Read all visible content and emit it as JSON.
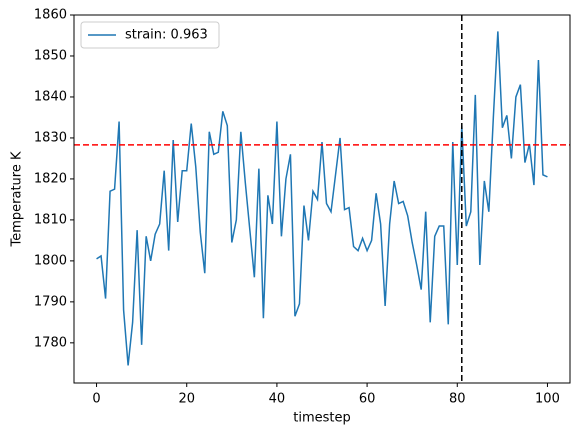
{
  "chart_data": {
    "type": "line",
    "xlabel": "timestep",
    "ylabel": "Temperature K",
    "x": [
      0,
      1,
      2,
      3,
      4,
      5,
      6,
      7,
      8,
      9,
      10,
      11,
      12,
      13,
      14,
      15,
      16,
      17,
      18,
      19,
      20,
      21,
      22,
      23,
      24,
      25,
      26,
      27,
      28,
      29,
      30,
      31,
      32,
      33,
      34,
      35,
      36,
      37,
      38,
      39,
      40,
      41,
      42,
      43,
      44,
      45,
      46,
      47,
      48,
      49,
      50,
      51,
      52,
      53,
      54,
      55,
      56,
      57,
      58,
      59,
      60,
      61,
      62,
      63,
      64,
      65,
      66,
      67,
      68,
      69,
      70,
      71,
      72,
      73,
      74,
      75,
      76,
      77,
      78,
      79,
      80,
      81,
      82,
      83,
      84,
      85,
      86,
      87,
      88,
      89,
      90,
      91,
      92,
      93,
      94,
      95,
      96,
      97,
      98,
      99,
      100
    ],
    "series": [
      {
        "name": "strain: 0.963",
        "color": "#1f77b4",
        "values": [
          1800.5,
          1801.2,
          1790.8,
          1817,
          1817.5,
          1834,
          1788,
          1774.5,
          1785,
          1807.5,
          1779.5,
          1806,
          1800,
          1806.5,
          1809,
          1822,
          1802.5,
          1829.5,
          1809.5,
          1822,
          1822,
          1833.5,
          1823,
          1807,
          1797,
          1831.5,
          1826,
          1826.5,
          1836.5,
          1833,
          1804.5,
          1810,
          1831.5,
          1819,
          1807.5,
          1796,
          1822.5,
          1786,
          1816,
          1809,
          1834,
          1806,
          1820,
          1826,
          1786.5,
          1789.5,
          1813.5,
          1805,
          1817,
          1815,
          1829,
          1814,
          1812,
          1821,
          1830,
          1812.5,
          1813,
          1803.5,
          1802.5,
          1805.5,
          1802.5,
          1805,
          1816.5,
          1809,
          1789,
          1809,
          1819.5,
          1814,
          1814.5,
          1811,
          1804.5,
          1799,
          1793,
          1812,
          1785,
          1806,
          1808.5,
          1808.5,
          1784.5,
          1829,
          1799,
          1833,
          1808.5,
          1812,
          1840.5,
          1799,
          1819.5,
          1812,
          1835,
          1856,
          1832.5,
          1835.5,
          1825,
          1840,
          1843,
          1824,
          1828.5,
          1818.5,
          1849,
          1821,
          1820.5
        ]
      }
    ],
    "hline": {
      "value": 1828.3,
      "color": "#ff0000"
    },
    "vline": {
      "value": 81,
      "color": "#000000"
    },
    "xlim": [
      -5,
      105
    ],
    "xticks": [
      0,
      20,
      40,
      60,
      80,
      100
    ],
    "ylim": [
      1770.2,
      1860
    ],
    "yticks": [
      1780,
      1790,
      1800,
      1810,
      1820,
      1830,
      1840,
      1850,
      1860
    ],
    "legend": "upper left",
    "grid": false
  }
}
